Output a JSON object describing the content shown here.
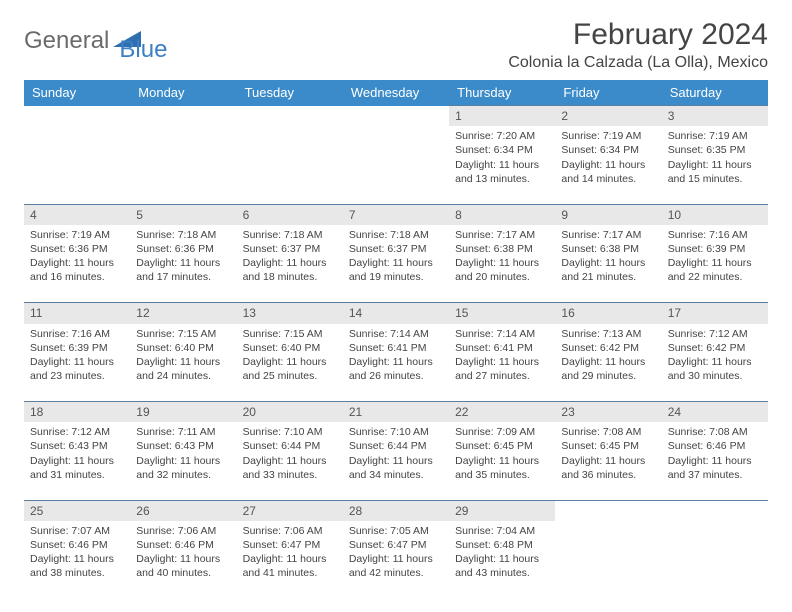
{
  "logo": {
    "part1": "General",
    "part2": "Blue"
  },
  "title": "February 2024",
  "location": "Colonia la Calzada (La Olla), Mexico",
  "colors": {
    "header_bg": "#3b8bca",
    "header_fg": "#ffffff",
    "daynum_bg": "#e8e8e8",
    "border": "#5a7fa0",
    "text": "#444444",
    "logo_gray": "#6b6b6b",
    "logo_blue": "#3b7fc4"
  },
  "weekdays": [
    "Sunday",
    "Monday",
    "Tuesday",
    "Wednesday",
    "Thursday",
    "Friday",
    "Saturday"
  ],
  "weeks": [
    [
      null,
      null,
      null,
      null,
      {
        "n": "1",
        "sr": "7:20 AM",
        "ss": "6:34 PM",
        "dl": "11 hours and 13 minutes."
      },
      {
        "n": "2",
        "sr": "7:19 AM",
        "ss": "6:34 PM",
        "dl": "11 hours and 14 minutes."
      },
      {
        "n": "3",
        "sr": "7:19 AM",
        "ss": "6:35 PM",
        "dl": "11 hours and 15 minutes."
      }
    ],
    [
      {
        "n": "4",
        "sr": "7:19 AM",
        "ss": "6:36 PM",
        "dl": "11 hours and 16 minutes."
      },
      {
        "n": "5",
        "sr": "7:18 AM",
        "ss": "6:36 PM",
        "dl": "11 hours and 17 minutes."
      },
      {
        "n": "6",
        "sr": "7:18 AM",
        "ss": "6:37 PM",
        "dl": "11 hours and 18 minutes."
      },
      {
        "n": "7",
        "sr": "7:18 AM",
        "ss": "6:37 PM",
        "dl": "11 hours and 19 minutes."
      },
      {
        "n": "8",
        "sr": "7:17 AM",
        "ss": "6:38 PM",
        "dl": "11 hours and 20 minutes."
      },
      {
        "n": "9",
        "sr": "7:17 AM",
        "ss": "6:38 PM",
        "dl": "11 hours and 21 minutes."
      },
      {
        "n": "10",
        "sr": "7:16 AM",
        "ss": "6:39 PM",
        "dl": "11 hours and 22 minutes."
      }
    ],
    [
      {
        "n": "11",
        "sr": "7:16 AM",
        "ss": "6:39 PM",
        "dl": "11 hours and 23 minutes."
      },
      {
        "n": "12",
        "sr": "7:15 AM",
        "ss": "6:40 PM",
        "dl": "11 hours and 24 minutes."
      },
      {
        "n": "13",
        "sr": "7:15 AM",
        "ss": "6:40 PM",
        "dl": "11 hours and 25 minutes."
      },
      {
        "n": "14",
        "sr": "7:14 AM",
        "ss": "6:41 PM",
        "dl": "11 hours and 26 minutes."
      },
      {
        "n": "15",
        "sr": "7:14 AM",
        "ss": "6:41 PM",
        "dl": "11 hours and 27 minutes."
      },
      {
        "n": "16",
        "sr": "7:13 AM",
        "ss": "6:42 PM",
        "dl": "11 hours and 29 minutes."
      },
      {
        "n": "17",
        "sr": "7:12 AM",
        "ss": "6:42 PM",
        "dl": "11 hours and 30 minutes."
      }
    ],
    [
      {
        "n": "18",
        "sr": "7:12 AM",
        "ss": "6:43 PM",
        "dl": "11 hours and 31 minutes."
      },
      {
        "n": "19",
        "sr": "7:11 AM",
        "ss": "6:43 PM",
        "dl": "11 hours and 32 minutes."
      },
      {
        "n": "20",
        "sr": "7:10 AM",
        "ss": "6:44 PM",
        "dl": "11 hours and 33 minutes."
      },
      {
        "n": "21",
        "sr": "7:10 AM",
        "ss": "6:44 PM",
        "dl": "11 hours and 34 minutes."
      },
      {
        "n": "22",
        "sr": "7:09 AM",
        "ss": "6:45 PM",
        "dl": "11 hours and 35 minutes."
      },
      {
        "n": "23",
        "sr": "7:08 AM",
        "ss": "6:45 PM",
        "dl": "11 hours and 36 minutes."
      },
      {
        "n": "24",
        "sr": "7:08 AM",
        "ss": "6:46 PM",
        "dl": "11 hours and 37 minutes."
      }
    ],
    [
      {
        "n": "25",
        "sr": "7:07 AM",
        "ss": "6:46 PM",
        "dl": "11 hours and 38 minutes."
      },
      {
        "n": "26",
        "sr": "7:06 AM",
        "ss": "6:46 PM",
        "dl": "11 hours and 40 minutes."
      },
      {
        "n": "27",
        "sr": "7:06 AM",
        "ss": "6:47 PM",
        "dl": "11 hours and 41 minutes."
      },
      {
        "n": "28",
        "sr": "7:05 AM",
        "ss": "6:47 PM",
        "dl": "11 hours and 42 minutes."
      },
      {
        "n": "29",
        "sr": "7:04 AM",
        "ss": "6:48 PM",
        "dl": "11 hours and 43 minutes."
      },
      null,
      null
    ]
  ],
  "labels": {
    "sunrise": "Sunrise:",
    "sunset": "Sunset:",
    "daylight": "Daylight:"
  }
}
